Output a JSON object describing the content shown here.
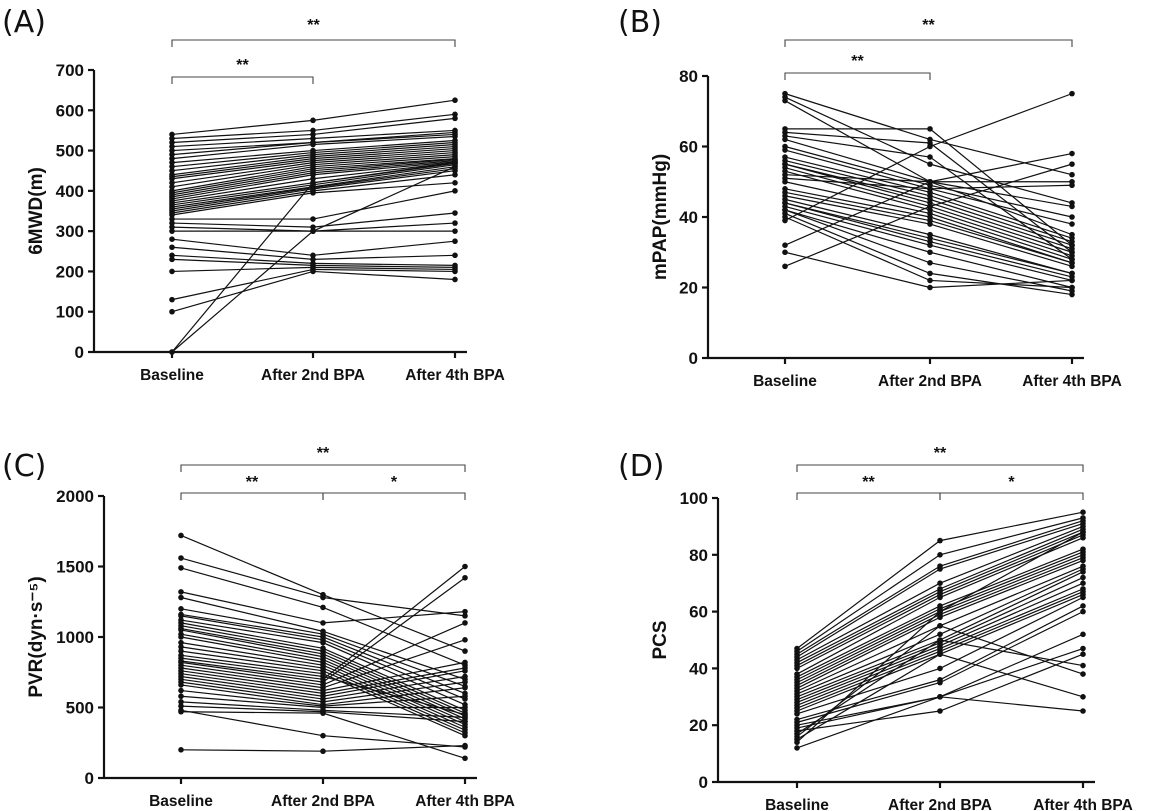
{
  "chart_data": [
    {
      "panel": "(A)",
      "type": "line",
      "ylabel": "6MWD(m)",
      "ylim": [
        0,
        700
      ],
      "yticks": [
        0,
        100,
        200,
        300,
        400,
        500,
        600,
        700
      ],
      "categories": [
        "Baseline",
        "After 2nd BPA",
        "After 4th BPA"
      ],
      "significance": [
        {
          "from": 0,
          "to": 1,
          "label": "**"
        },
        {
          "from": 0,
          "to": 2,
          "label": "**"
        }
      ],
      "series": [
        [
          540,
          575,
          625
        ],
        [
          530,
          550,
          590
        ],
        [
          520,
          540,
          580
        ],
        [
          510,
          530,
          550
        ],
        [
          500,
          520,
          545
        ],
        [
          490,
          520,
          540
        ],
        [
          480,
          515,
          535
        ],
        [
          470,
          500,
          525
        ],
        [
          460,
          495,
          520
        ],
        [
          450,
          490,
          515
        ],
        [
          440,
          485,
          510
        ],
        [
          435,
          480,
          505
        ],
        [
          430,
          475,
          500
        ],
        [
          420,
          470,
          495
        ],
        [
          410,
          465,
          490
        ],
        [
          400,
          460,
          485
        ],
        [
          395,
          455,
          480
        ],
        [
          390,
          450,
          478
        ],
        [
          385,
          445,
          475
        ],
        [
          380,
          440,
          472
        ],
        [
          375,
          430,
          470
        ],
        [
          370,
          420,
          468
        ],
        [
          365,
          415,
          465
        ],
        [
          360,
          410,
          460
        ],
        [
          355,
          408,
          455
        ],
        [
          350,
          405,
          450
        ],
        [
          345,
          400,
          440
        ],
        [
          340,
          395,
          420
        ],
        [
          330,
          330,
          400
        ],
        [
          320,
          310,
          345
        ],
        [
          310,
          300,
          320
        ],
        [
          300,
          300,
          300
        ],
        [
          280,
          240,
          275
        ],
        [
          260,
          230,
          240
        ],
        [
          240,
          220,
          215
        ],
        [
          230,
          215,
          210
        ],
        [
          200,
          210,
          205
        ],
        [
          130,
          205,
          200
        ],
        [
          100,
          200,
          180
        ],
        [
          0,
          300,
          460
        ],
        [
          0,
          420,
          470
        ]
      ]
    },
    {
      "panel": "(B)",
      "type": "line",
      "ylabel": "mPAP(mmHg)",
      "ylim": [
        0,
        80
      ],
      "yticks": [
        0,
        20,
        40,
        60,
        80
      ],
      "categories": [
        "Baseline",
        "After 2nd BPA",
        "After 4th BPA"
      ],
      "significance": [
        {
          "from": 0,
          "to": 1,
          "label": "**"
        },
        {
          "from": 0,
          "to": 2,
          "label": "**"
        }
      ],
      "series": [
        [
          75,
          62,
          52
        ],
        [
          74,
          55,
          44
        ],
        [
          73,
          50,
          35
        ],
        [
          65,
          65,
          32
        ],
        [
          64,
          61,
          30
        ],
        [
          63,
          57,
          28
        ],
        [
          62,
          50,
          43
        ],
        [
          60,
          49,
          40
        ],
        [
          59,
          48,
          38
        ],
        [
          57,
          47,
          34
        ],
        [
          56,
          46,
          33
        ],
        [
          55,
          45,
          32
        ],
        [
          55,
          44,
          31
        ],
        [
          54,
          43,
          30
        ],
        [
          53,
          42,
          29
        ],
        [
          52,
          50,
          50
        ],
        [
          51,
          48,
          49
        ],
        [
          50,
          41,
          28
        ],
        [
          48,
          40,
          27
        ],
        [
          47,
          39,
          27
        ],
        [
          46,
          38,
          26
        ],
        [
          45,
          35,
          24
        ],
        [
          44,
          34,
          24
        ],
        [
          44,
          33,
          23
        ],
        [
          43,
          32,
          22
        ],
        [
          42,
          30,
          20
        ],
        [
          42,
          27,
          19
        ],
        [
          41,
          24,
          18
        ],
        [
          40,
          22,
          20
        ],
        [
          39,
          60,
          75
        ],
        [
          32,
          50,
          58
        ],
        [
          30,
          20,
          22
        ],
        [
          26,
          43,
          55
        ]
      ]
    },
    {
      "panel": "(C)",
      "type": "line",
      "ylabel": "PVR(dyn·s⁻⁵)",
      "ylim": [
        0,
        2000
      ],
      "yticks": [
        0,
        500,
        1000,
        1500,
        2000
      ],
      "categories": [
        "Baseline",
        "After 2nd BPA",
        "After 4th BPA"
      ],
      "significance": [
        {
          "from": 0,
          "to": 1,
          "label": "**"
        },
        {
          "from": 1,
          "to": 2,
          "label": "*"
        },
        {
          "from": 0,
          "to": 2,
          "label": "**"
        }
      ],
      "series": [
        [
          1720,
          1300,
          900
        ],
        [
          1560,
          1280,
          1150
        ],
        [
          1490,
          1210,
          800
        ],
        [
          1320,
          1100,
          1180
        ],
        [
          1280,
          1040,
          700
        ],
        [
          1200,
          1020,
          650
        ],
        [
          1160,
          1000,
          600
        ],
        [
          1150,
          980,
          560
        ],
        [
          1120,
          960,
          520
        ],
        [
          1100,
          920,
          480
        ],
        [
          1080,
          900,
          460
        ],
        [
          1060,
          880,
          440
        ],
        [
          1050,
          860,
          420
        ],
        [
          1020,
          840,
          400
        ],
        [
          1000,
          820,
          380
        ],
        [
          960,
          800,
          360
        ],
        [
          930,
          780,
          340
        ],
        [
          900,
          760,
          320
        ],
        [
          870,
          740,
          300
        ],
        [
          850,
          720,
          450
        ],
        [
          830,
          700,
          1500
        ],
        [
          820,
          680,
          1420
        ],
        [
          800,
          660,
          1100
        ],
        [
          780,
          640,
          980
        ],
        [
          760,
          620,
          820
        ],
        [
          740,
          600,
          780
        ],
        [
          720,
          580,
          760
        ],
        [
          700,
          560,
          720
        ],
        [
          680,
          540,
          680
        ],
        [
          660,
          520,
          640
        ],
        [
          620,
          510,
          580
        ],
        [
          580,
          500,
          500
        ],
        [
          540,
          480,
          430
        ],
        [
          510,
          470,
          400
        ],
        [
          480,
          300,
          220
        ],
        [
          470,
          460,
          140
        ],
        [
          200,
          190,
          230
        ]
      ]
    },
    {
      "panel": "(D)",
      "type": "line",
      "ylabel": "PCS",
      "ylim": [
        0,
        100
      ],
      "yticks": [
        0,
        20,
        40,
        60,
        80,
        100
      ],
      "categories": [
        "Baseline",
        "After 2nd BPA",
        "After 4th BPA"
      ],
      "significance": [
        {
          "from": 0,
          "to": 1,
          "label": "**"
        },
        {
          "from": 1,
          "to": 2,
          "label": "*"
        },
        {
          "from": 0,
          "to": 2,
          "label": "**"
        }
      ],
      "series": [
        [
          47,
          85,
          95
        ],
        [
          46,
          80,
          93
        ],
        [
          45,
          76,
          92
        ],
        [
          44,
          75,
          91
        ],
        [
          43,
          70,
          90
        ],
        [
          42,
          68,
          89
        ],
        [
          41,
          67,
          88
        ],
        [
          40,
          66,
          87
        ],
        [
          38,
          65,
          86
        ],
        [
          37,
          62,
          82
        ],
        [
          36,
          61,
          81
        ],
        [
          35,
          60,
          80
        ],
        [
          34,
          59,
          79
        ],
        [
          33,
          58,
          78
        ],
        [
          32,
          55,
          76
        ],
        [
          31,
          52,
          75
        ],
        [
          30,
          50,
          74
        ],
        [
          29,
          49,
          72
        ],
        [
          28,
          48,
          70
        ],
        [
          27,
          47,
          68
        ],
        [
          26,
          46,
          67
        ],
        [
          25,
          45,
          66
        ],
        [
          24,
          40,
          65
        ],
        [
          22,
          36,
          62
        ],
        [
          21,
          35,
          60
        ],
        [
          20,
          30,
          52
        ],
        [
          19,
          30,
          47
        ],
        [
          18,
          25,
          45
        ],
        [
          17,
          50,
          41
        ],
        [
          16,
          55,
          38
        ],
        [
          15,
          45,
          30
        ],
        [
          14,
          60,
          88
        ],
        [
          12,
          30,
          25
        ]
      ]
    }
  ]
}
